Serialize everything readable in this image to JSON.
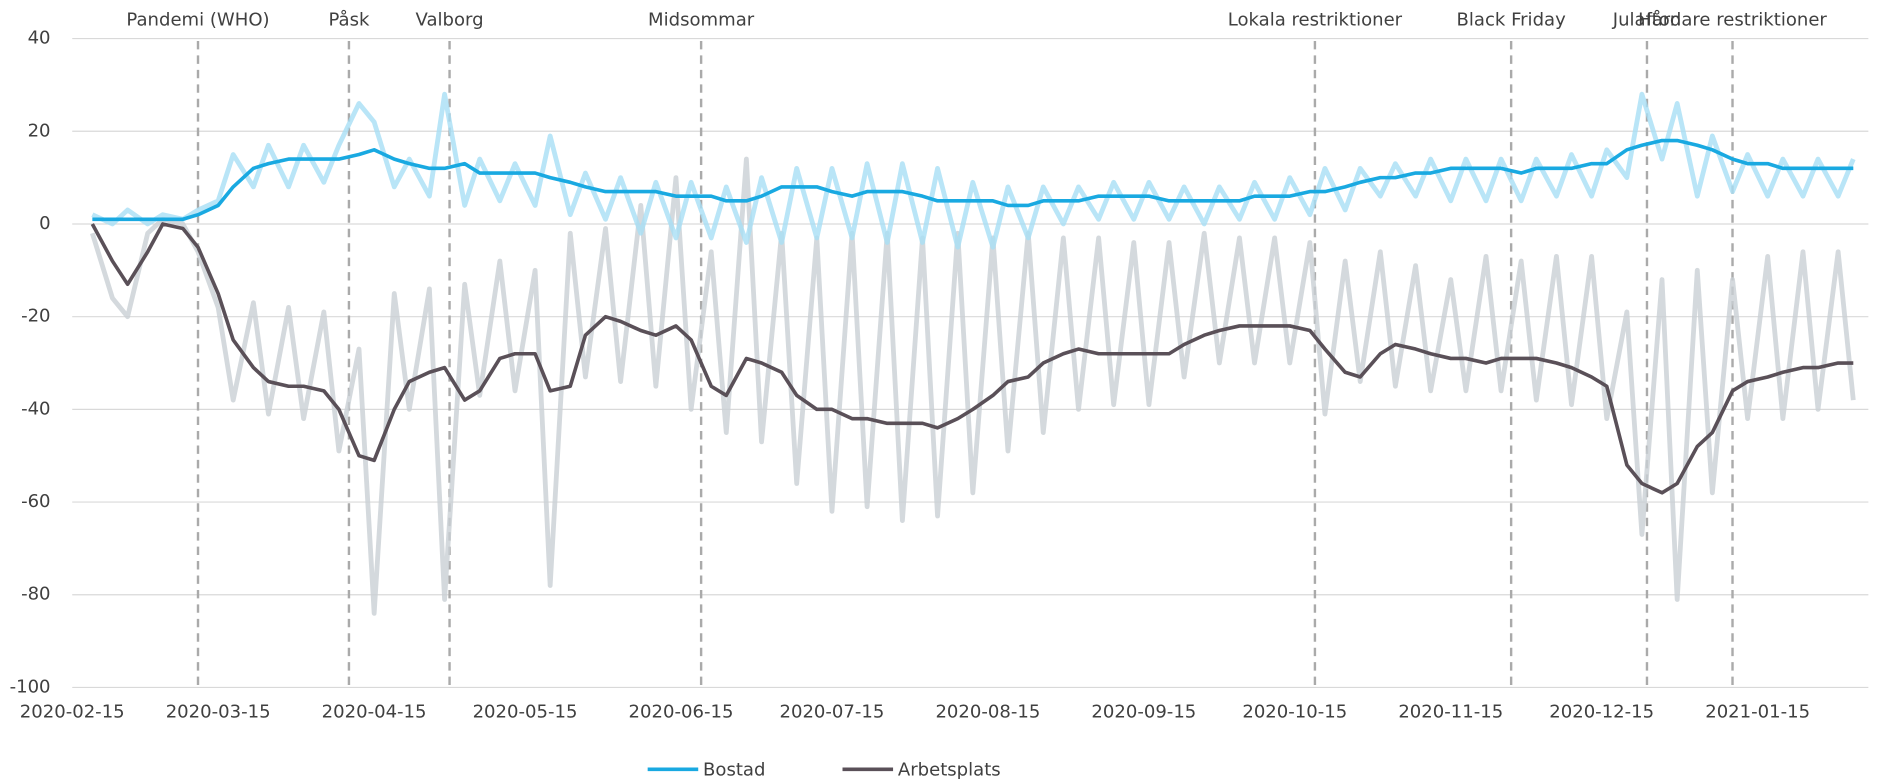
{
  "chart_data": {
    "type": "line",
    "x": [
      "2020-02-19",
      "2020-02-23",
      "2020-02-26",
      "2020-03-01",
      "2020-03-04",
      "2020-03-08",
      "2020-03-11",
      "2020-03-15",
      "2020-03-18",
      "2020-03-22",
      "2020-03-25",
      "2020-03-29",
      "2020-04-01",
      "2020-04-05",
      "2020-04-08",
      "2020-04-12",
      "2020-04-15",
      "2020-04-19",
      "2020-04-22",
      "2020-04-26",
      "2020-04-29",
      "2020-05-03",
      "2020-05-06",
      "2020-05-10",
      "2020-05-13",
      "2020-05-17",
      "2020-05-20",
      "2020-05-24",
      "2020-05-27",
      "2020-05-31",
      "2020-06-03",
      "2020-06-07",
      "2020-06-10",
      "2020-06-14",
      "2020-06-17",
      "2020-06-21",
      "2020-06-24",
      "2020-06-28",
      "2020-07-01",
      "2020-07-05",
      "2020-07-08",
      "2020-07-12",
      "2020-07-15",
      "2020-07-19",
      "2020-07-22",
      "2020-07-26",
      "2020-07-29",
      "2020-08-02",
      "2020-08-05",
      "2020-08-09",
      "2020-08-12",
      "2020-08-16",
      "2020-08-19",
      "2020-08-23",
      "2020-08-26",
      "2020-08-30",
      "2020-09-02",
      "2020-09-06",
      "2020-09-09",
      "2020-09-13",
      "2020-09-16",
      "2020-09-20",
      "2020-09-23",
      "2020-09-27",
      "2020-09-30",
      "2020-10-04",
      "2020-10-07",
      "2020-10-11",
      "2020-10-14",
      "2020-10-18",
      "2020-10-21",
      "2020-10-25",
      "2020-10-28",
      "2020-11-01",
      "2020-11-04",
      "2020-11-08",
      "2020-11-11",
      "2020-11-15",
      "2020-11-18",
      "2020-11-22",
      "2020-11-25",
      "2020-11-29",
      "2020-12-02",
      "2020-12-06",
      "2020-12-09",
      "2020-12-13",
      "2020-12-16",
      "2020-12-20",
      "2020-12-23",
      "2020-12-27",
      "2020-12-30",
      "2021-01-03",
      "2021-01-06",
      "2021-01-10",
      "2021-01-13",
      "2021-01-17",
      "2021-01-20",
      "2021-01-24",
      "2021-01-27",
      "2021-01-31",
      "2021-02-03"
    ],
    "series": [
      {
        "color": "#c9d0d4",
        "width": 4,
        "values": [
          -2,
          -16,
          -20,
          -2,
          1,
          0,
          -6,
          -18,
          -38,
          -17,
          -41,
          -18,
          -42,
          -19,
          -49,
          -27,
          -84,
          -15,
          -40,
          -14,
          -81,
          -13,
          -37,
          -8,
          -36,
          -10,
          -78,
          -2,
          -33,
          -1,
          -34,
          4,
          -35,
          10,
          -40,
          -6,
          -45,
          14,
          -47,
          -2,
          -56,
          -3,
          -62,
          -2,
          -61,
          -2,
          -64,
          -3,
          -63,
          -2,
          -58,
          -3,
          -49,
          -2,
          -45,
          -3,
          -40,
          -3,
          -39,
          -4,
          -39,
          -4,
          -33,
          -2,
          -30,
          -3,
          -30,
          -3,
          -30,
          -4,
          -41,
          -8,
          -34,
          -6,
          -35,
          -9,
          -36,
          -12,
          -36,
          -7,
          -36,
          -8,
          -38,
          -7,
          -39,
          -7,
          -42,
          -19,
          -67,
          -12,
          -81,
          -10,
          -58,
          -12,
          -42,
          -7,
          -42,
          -6,
          -40,
          -6,
          -38
        ]
      },
      {
        "color": "#a8dff5",
        "width": 4,
        "values": [
          2,
          0,
          3,
          0,
          2,
          1,
          3,
          5,
          15,
          8,
          17,
          8,
          17,
          9,
          17,
          26,
          22,
          8,
          14,
          6,
          28,
          4,
          14,
          5,
          13,
          4,
          19,
          2,
          11,
          1,
          10,
          -2,
          9,
          -3,
          9,
          -3,
          8,
          -4,
          10,
          -4,
          12,
          -3,
          12,
          -3,
          13,
          -4,
          13,
          -4,
          12,
          -5,
          9,
          -5,
          8,
          -3,
          8,
          0,
          8,
          1,
          9,
          1,
          9,
          1,
          8,
          0,
          8,
          1,
          9,
          1,
          10,
          2,
          12,
          3,
          12,
          6,
          13,
          6,
          14,
          5,
          14,
          5,
          14,
          5,
          14,
          6,
          15,
          6,
          16,
          10,
          28,
          14,
          26,
          6,
          19,
          7,
          15,
          6,
          14,
          6,
          14,
          6,
          14
        ]
      },
      {
        "name": "Bostad",
        "color": "#19a9e1",
        "width": 3,
        "values": [
          1,
          1,
          1,
          1,
          1,
          1,
          2,
          4,
          8,
          12,
          13,
          14,
          14,
          14,
          14,
          15,
          16,
          14,
          13,
          12,
          12,
          13,
          11,
          11,
          11,
          11,
          10,
          9,
          8,
          7,
          7,
          7,
          7,
          6,
          6,
          6,
          5,
          5,
          6,
          8,
          8,
          8,
          7,
          6,
          7,
          7,
          7,
          6,
          5,
          5,
          5,
          5,
          4,
          4,
          5,
          5,
          5,
          6,
          6,
          6,
          6,
          5,
          5,
          5,
          5,
          5,
          6,
          6,
          6,
          7,
          7,
          8,
          9,
          10,
          10,
          11,
          11,
          12,
          12,
          12,
          12,
          11,
          12,
          12,
          12,
          13,
          13,
          16,
          17,
          18,
          18,
          17,
          16,
          14,
          13,
          13,
          12,
          12,
          12,
          12,
          12
        ]
      },
      {
        "name": "Arbetsplats",
        "color": "#5a5058",
        "width": 3,
        "values": [
          0,
          -8,
          -13,
          -6,
          0,
          -1,
          -5,
          -15,
          -25,
          -31,
          -34,
          -35,
          -35,
          -36,
          -40,
          -50,
          -51,
          -40,
          -34,
          -32,
          -31,
          -38,
          -36,
          -29,
          -28,
          -28,
          -36,
          -35,
          -24,
          -20,
          -21,
          -23,
          -24,
          -22,
          -25,
          -35,
          -37,
          -29,
          -30,
          -32,
          -37,
          -40,
          -40,
          -42,
          -42,
          -43,
          -43,
          -43,
          -44,
          -42,
          -40,
          -37,
          -34,
          -33,
          -30,
          -28,
          -27,
          -28,
          -28,
          -28,
          -28,
          -28,
          -26,
          -24,
          -23,
          -22,
          -22,
          -22,
          -22,
          -23,
          -27,
          -32,
          -33,
          -28,
          -26,
          -27,
          -28,
          -29,
          -29,
          -30,
          -29,
          -29,
          -29,
          -30,
          -31,
          -33,
          -35,
          -52,
          -56,
          -58,
          -56,
          -48,
          -45,
          -36,
          -34,
          -33,
          -32,
          -31,
          -31,
          -30,
          -30
        ]
      }
    ],
    "xlim": [
      "2020-02-15",
      "2021-02-06"
    ],
    "xticks": [
      "2020-02-15",
      "2020-03-15",
      "2020-04-15",
      "2020-05-15",
      "2020-06-15",
      "2020-07-15",
      "2020-08-15",
      "2020-09-15",
      "2020-10-15",
      "2020-11-15",
      "2020-12-15",
      "2021-01-15"
    ],
    "ylim": [
      -100,
      40
    ],
    "yticks": [
      -100,
      -80,
      -60,
      -40,
      -20,
      0,
      20,
      40
    ],
    "grid": true,
    "annotations": [
      {
        "label": "Pandemi (WHO)",
        "x": "2020-03-11"
      },
      {
        "label": "Påsk",
        "x": "2020-04-10"
      },
      {
        "label": "Valborg",
        "x": "2020-04-30"
      },
      {
        "label": "Midsommar",
        "x": "2020-06-19"
      },
      {
        "label": "Lokala restriktioner",
        "x": "2020-10-19"
      },
      {
        "label": "Black Friday",
        "x": "2020-11-27"
      },
      {
        "label": "Julafton",
        "x": "2020-12-24"
      },
      {
        "label": "Hårdare restriktioner",
        "x": "2021-01-10"
      }
    ]
  }
}
